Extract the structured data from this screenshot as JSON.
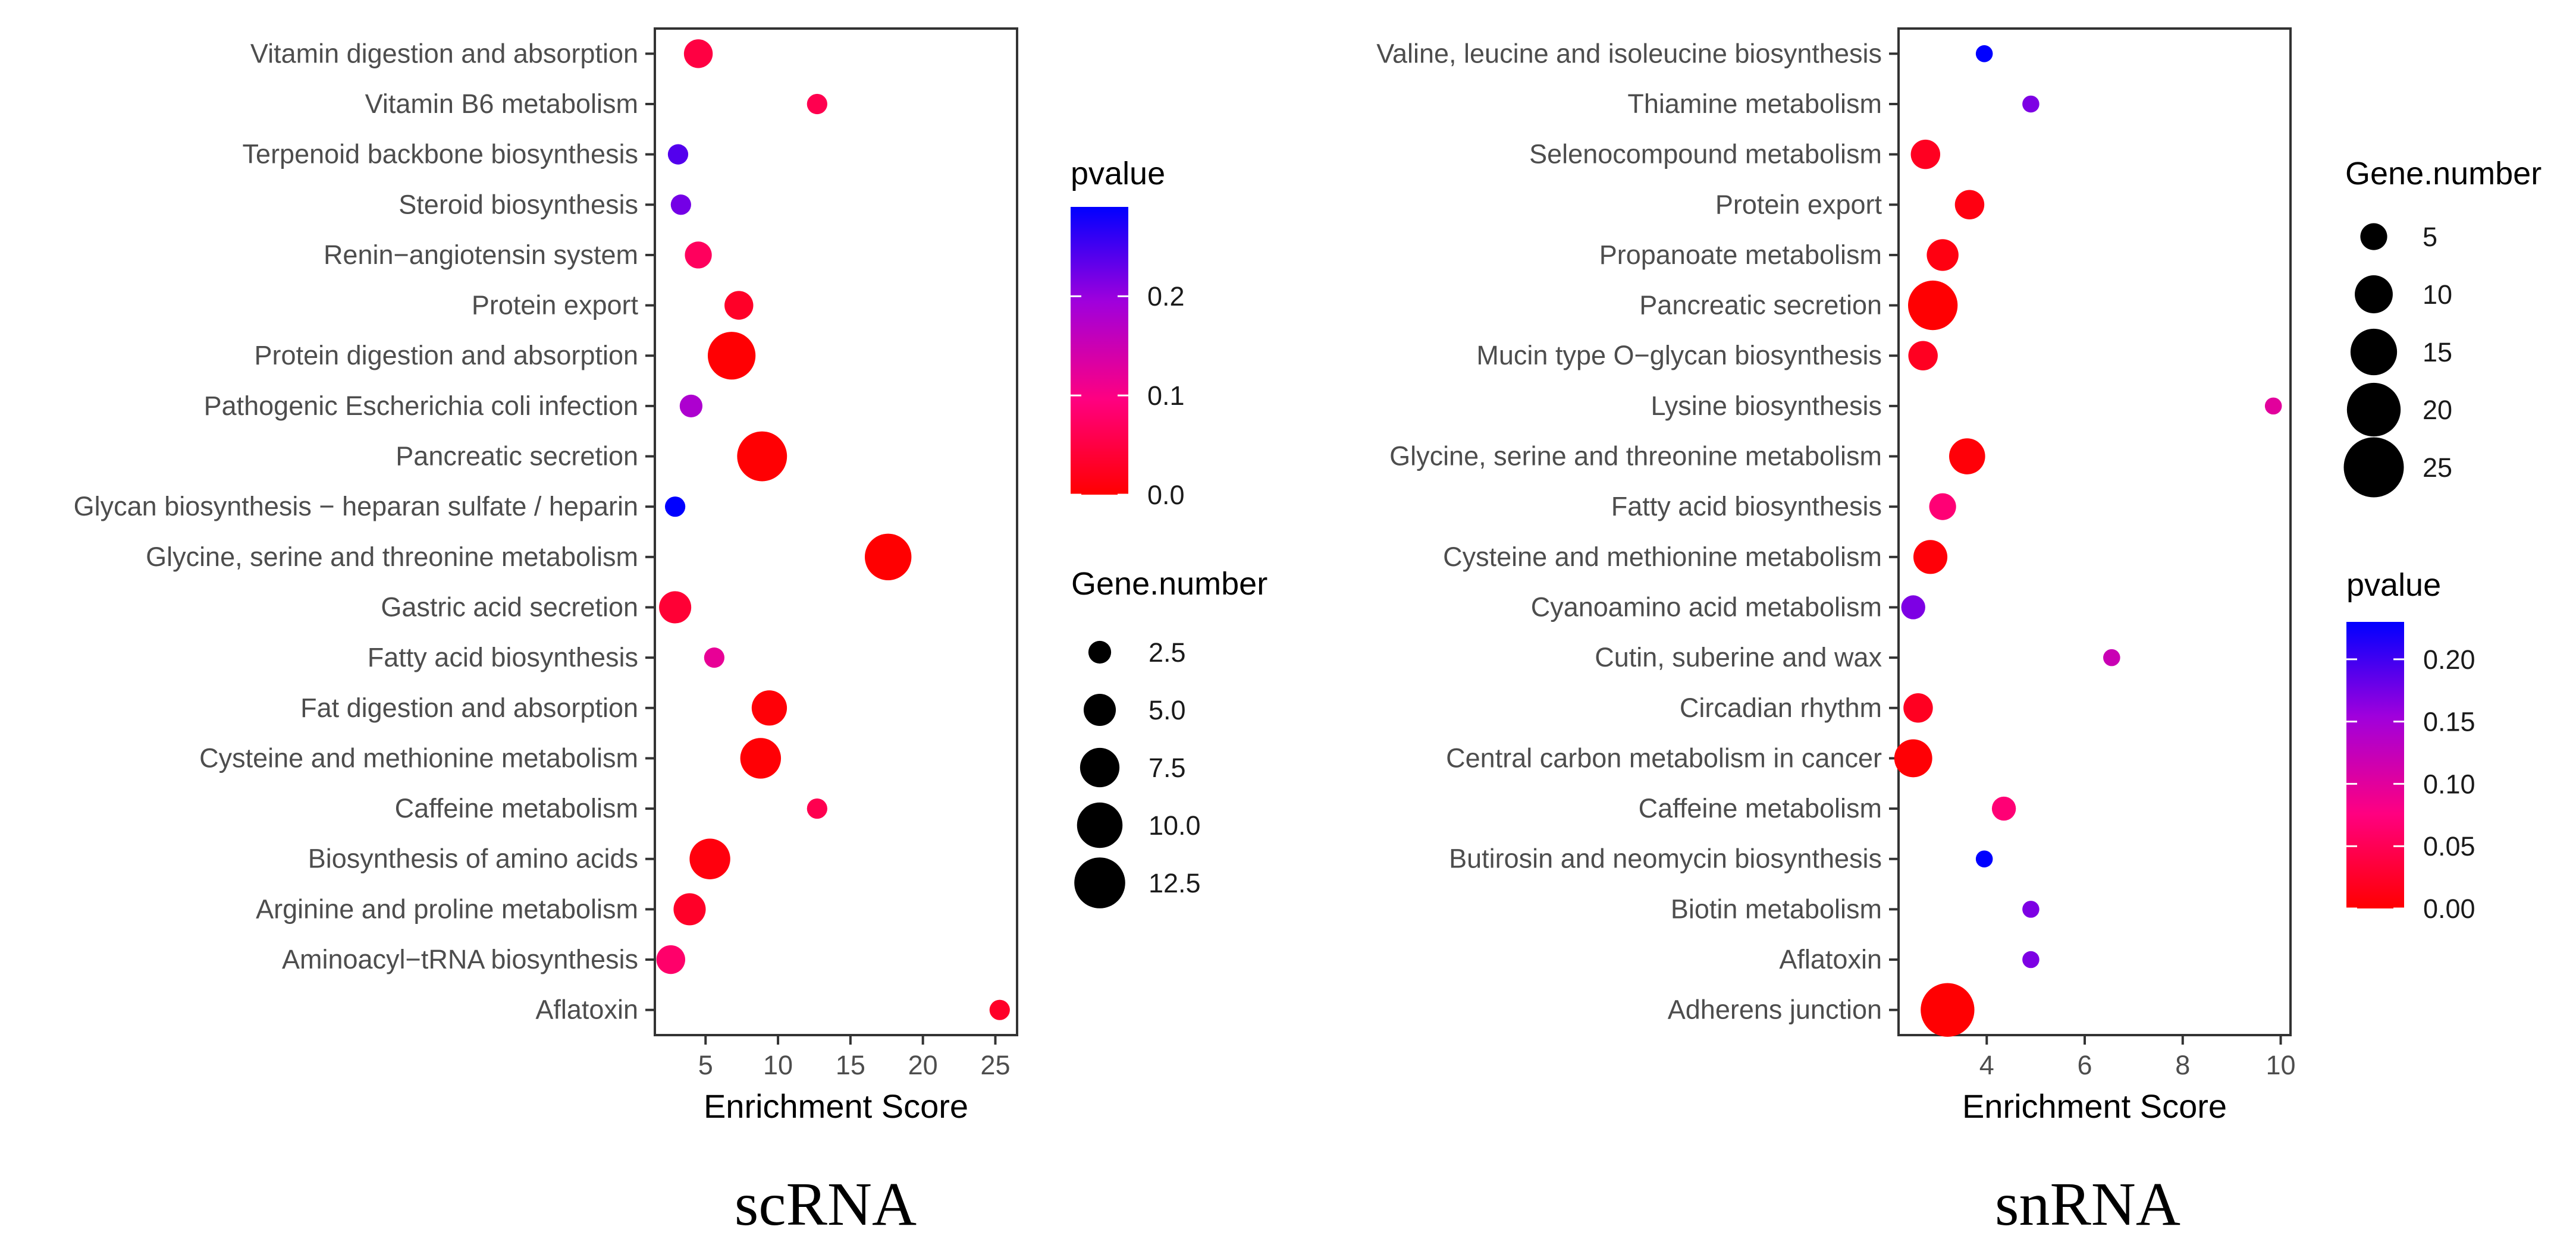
{
  "chart_data": [
    {
      "type": "scatter",
      "caption": "scRNA",
      "xlabel": "Enrichment Score",
      "xlim": [
        1.5,
        26.5
      ],
      "xticks": [
        5,
        10,
        15,
        20,
        25
      ],
      "categories": [
        "Vitamin digestion and absorption",
        "Vitamin B6 metabolism",
        "Terpenoid backbone biosynthesis",
        "Steroid biosynthesis",
        "Renin−angiotensin system",
        "Protein export",
        "Protein digestion and absorption",
        "Pathogenic Escherichia coli infection",
        "Pancreatic secretion",
        "Glycan biosynthesis − heparan sulfate / heparin",
        "Glycine, serine and threonine metabolism",
        "Gastric acid secretion",
        "Fatty acid biosynthesis",
        "Fat digestion and absorption",
        "Cysteine and methionine metabolism",
        "Caffeine metabolism",
        "Biosynthesis of amino acids",
        "Arginine and proline metabolism",
        "Aminoacyl−tRNA biosynthesis",
        "Aflatoxin"
      ],
      "points": [
        {
          "category": "Vitamin digestion and absorption",
          "score": 4.5,
          "gene_number": 4,
          "pvalue": 0.05
        },
        {
          "category": "Vitamin B6 metabolism",
          "score": 12.7,
          "gene_number": 2,
          "pvalue": 0.06
        },
        {
          "category": "Terpenoid backbone biosynthesis",
          "score": 3.1,
          "gene_number": 2,
          "pvalue": 0.24
        },
        {
          "category": "Steroid biosynthesis",
          "score": 3.3,
          "gene_number": 2,
          "pvalue": 0.22
        },
        {
          "category": "Renin−angiotensin system",
          "score": 4.5,
          "gene_number": 3.5,
          "pvalue": 0.07
        },
        {
          "category": "Protein export",
          "score": 7.3,
          "gene_number": 4,
          "pvalue": 0.03
        },
        {
          "category": "Protein digestion and absorption",
          "score": 6.8,
          "gene_number": 11,
          "pvalue": 0.002
        },
        {
          "category": "Pathogenic Escherichia coli infection",
          "score": 4.0,
          "gene_number": 2.5,
          "pvalue": 0.18
        },
        {
          "category": "Pancreatic secretion",
          "score": 8.9,
          "gene_number": 12,
          "pvalue": 0.002
        },
        {
          "category": "Glycan biosynthesis − heparan sulfate / heparin",
          "score": 2.9,
          "gene_number": 2,
          "pvalue": 0.29
        },
        {
          "category": "Glycine, serine and threonine metabolism",
          "score": 17.6,
          "gene_number": 10.5,
          "pvalue": 0.001
        },
        {
          "category": "Gastric acid secretion",
          "score": 2.9,
          "gene_number": 5,
          "pvalue": 0.04
        },
        {
          "category": "Fatty acid biosynthesis",
          "score": 5.6,
          "gene_number": 2,
          "pvalue": 0.12
        },
        {
          "category": "Fat digestion and absorption",
          "score": 9.4,
          "gene_number": 6,
          "pvalue": 0.005
        },
        {
          "category": "Cysteine and methionine metabolism",
          "score": 8.8,
          "gene_number": 8,
          "pvalue": 0.004
        },
        {
          "category": "Caffeine metabolism",
          "score": 12.7,
          "gene_number": 2,
          "pvalue": 0.06
        },
        {
          "category": "Biosynthesis of amino acids",
          "score": 5.3,
          "gene_number": 8,
          "pvalue": 0.01
        },
        {
          "category": "Arginine and proline metabolism",
          "score": 3.9,
          "gene_number": 5,
          "pvalue": 0.03
        },
        {
          "category": "Aminoacyl−tRNA biosynthesis",
          "score": 2.6,
          "gene_number": 4,
          "pvalue": 0.08
        },
        {
          "category": "Aflatoxin",
          "score": 25.3,
          "gene_number": 2,
          "pvalue": 0.03
        }
      ],
      "legend": {
        "color_title": "pvalue",
        "color_ticks": [
          0.0,
          0.1,
          0.2
        ],
        "color_tick_labels": [
          "0.0",
          "0.1",
          "0.2"
        ],
        "color_range": [
          0,
          0.29
        ],
        "size_title": "Gene.number",
        "size_values": [
          2.5,
          5.0,
          7.5,
          10.0,
          12.5
        ],
        "size_labels": [
          "2.5",
          "5.0",
          "7.5",
          "10.0",
          "12.5"
        ]
      }
    },
    {
      "type": "scatter",
      "caption": "snRNA",
      "xlabel": "Enrichment Score",
      "xlim": [
        2.2,
        10.2
      ],
      "xticks": [
        4,
        6,
        8,
        10
      ],
      "categories": [
        "Valine, leucine and isoleucine biosynthesis",
        "Thiamine metabolism",
        "Selenocompound metabolism",
        "Protein export",
        "Propanoate metabolism",
        "Pancreatic secretion",
        "Mucin type O−glycan biosynthesis",
        "Lysine biosynthesis",
        "Glycine, serine and threonine metabolism",
        "Fatty acid biosynthesis",
        "Cysteine and methionine metabolism",
        "Cyanoamino acid metabolism",
        "Cutin, suberine and wax",
        "Circadian rhythm",
        "Central carbon metabolism in cancer",
        "Caffeine metabolism",
        "Butirosin and neomycin biosynthesis",
        "Biotin metabolism",
        "Aflatoxin",
        "Adherens junction"
      ],
      "points": [
        {
          "category": "Valine, leucine and isoleucine biosynthesis",
          "score": 3.95,
          "gene_number": 2,
          "pvalue": 0.23
        },
        {
          "category": "Thiamine metabolism",
          "score": 4.9,
          "gene_number": 2,
          "pvalue": 0.17
        },
        {
          "category": "Selenocompound metabolism",
          "score": 2.75,
          "gene_number": 6,
          "pvalue": 0.02
        },
        {
          "category": "Protein export",
          "score": 3.65,
          "gene_number": 6,
          "pvalue": 0.01
        },
        {
          "category": "Propanoate metabolism",
          "score": 3.1,
          "gene_number": 7,
          "pvalue": 0.01
        },
        {
          "category": "Pancreatic secretion",
          "score": 2.9,
          "gene_number": 17,
          "pvalue": 0.001
        },
        {
          "category": "Mucin type O−glycan biosynthesis",
          "score": 2.7,
          "gene_number": 6,
          "pvalue": 0.02
        },
        {
          "category": "Lysine biosynthesis",
          "score": 9.85,
          "gene_number": 2,
          "pvalue": 0.1
        },
        {
          "category": "Glycine, serine and threonine metabolism",
          "score": 3.6,
          "gene_number": 9,
          "pvalue": 0.005
        },
        {
          "category": "Fatty acid biosynthesis",
          "score": 3.1,
          "gene_number": 5,
          "pvalue": 0.07
        },
        {
          "category": "Cysteine and methionine metabolism",
          "score": 2.85,
          "gene_number": 8,
          "pvalue": 0.005
        },
        {
          "category": "Cyanoamino acid metabolism",
          "score": 2.5,
          "gene_number": 4,
          "pvalue": 0.17
        },
        {
          "category": "Cutin, suberine and wax",
          "score": 6.55,
          "gene_number": 2,
          "pvalue": 0.12
        },
        {
          "category": "Circadian rhythm",
          "score": 2.6,
          "gene_number": 6,
          "pvalue": 0.02
        },
        {
          "category": "Central carbon metabolism in cancer",
          "score": 2.5,
          "gene_number": 10,
          "pvalue": 0.003
        },
        {
          "category": "Caffeine metabolism",
          "score": 4.35,
          "gene_number": 4,
          "pvalue": 0.07
        },
        {
          "category": "Butirosin and neomycin biosynthesis",
          "score": 3.95,
          "gene_number": 2,
          "pvalue": 0.23
        },
        {
          "category": "Biotin metabolism",
          "score": 4.9,
          "gene_number": 2,
          "pvalue": 0.17
        },
        {
          "category": "Aflatoxin",
          "score": 4.9,
          "gene_number": 2,
          "pvalue": 0.17
        },
        {
          "category": "Adherens junction",
          "score": 3.2,
          "gene_number": 20,
          "pvalue": 0.001
        }
      ],
      "legend": {
        "color_title": "pvalue",
        "color_ticks": [
          0.0,
          0.05,
          0.1,
          0.15,
          0.2
        ],
        "color_tick_labels": [
          "0.00",
          "0.05",
          "0.10",
          "0.15",
          "0.20"
        ],
        "color_range": [
          0,
          0.23
        ],
        "size_title": "Gene.number",
        "size_values": [
          5,
          10,
          15,
          20,
          25
        ],
        "size_labels": [
          "5",
          "10",
          "15",
          "20",
          "25"
        ]
      }
    }
  ]
}
